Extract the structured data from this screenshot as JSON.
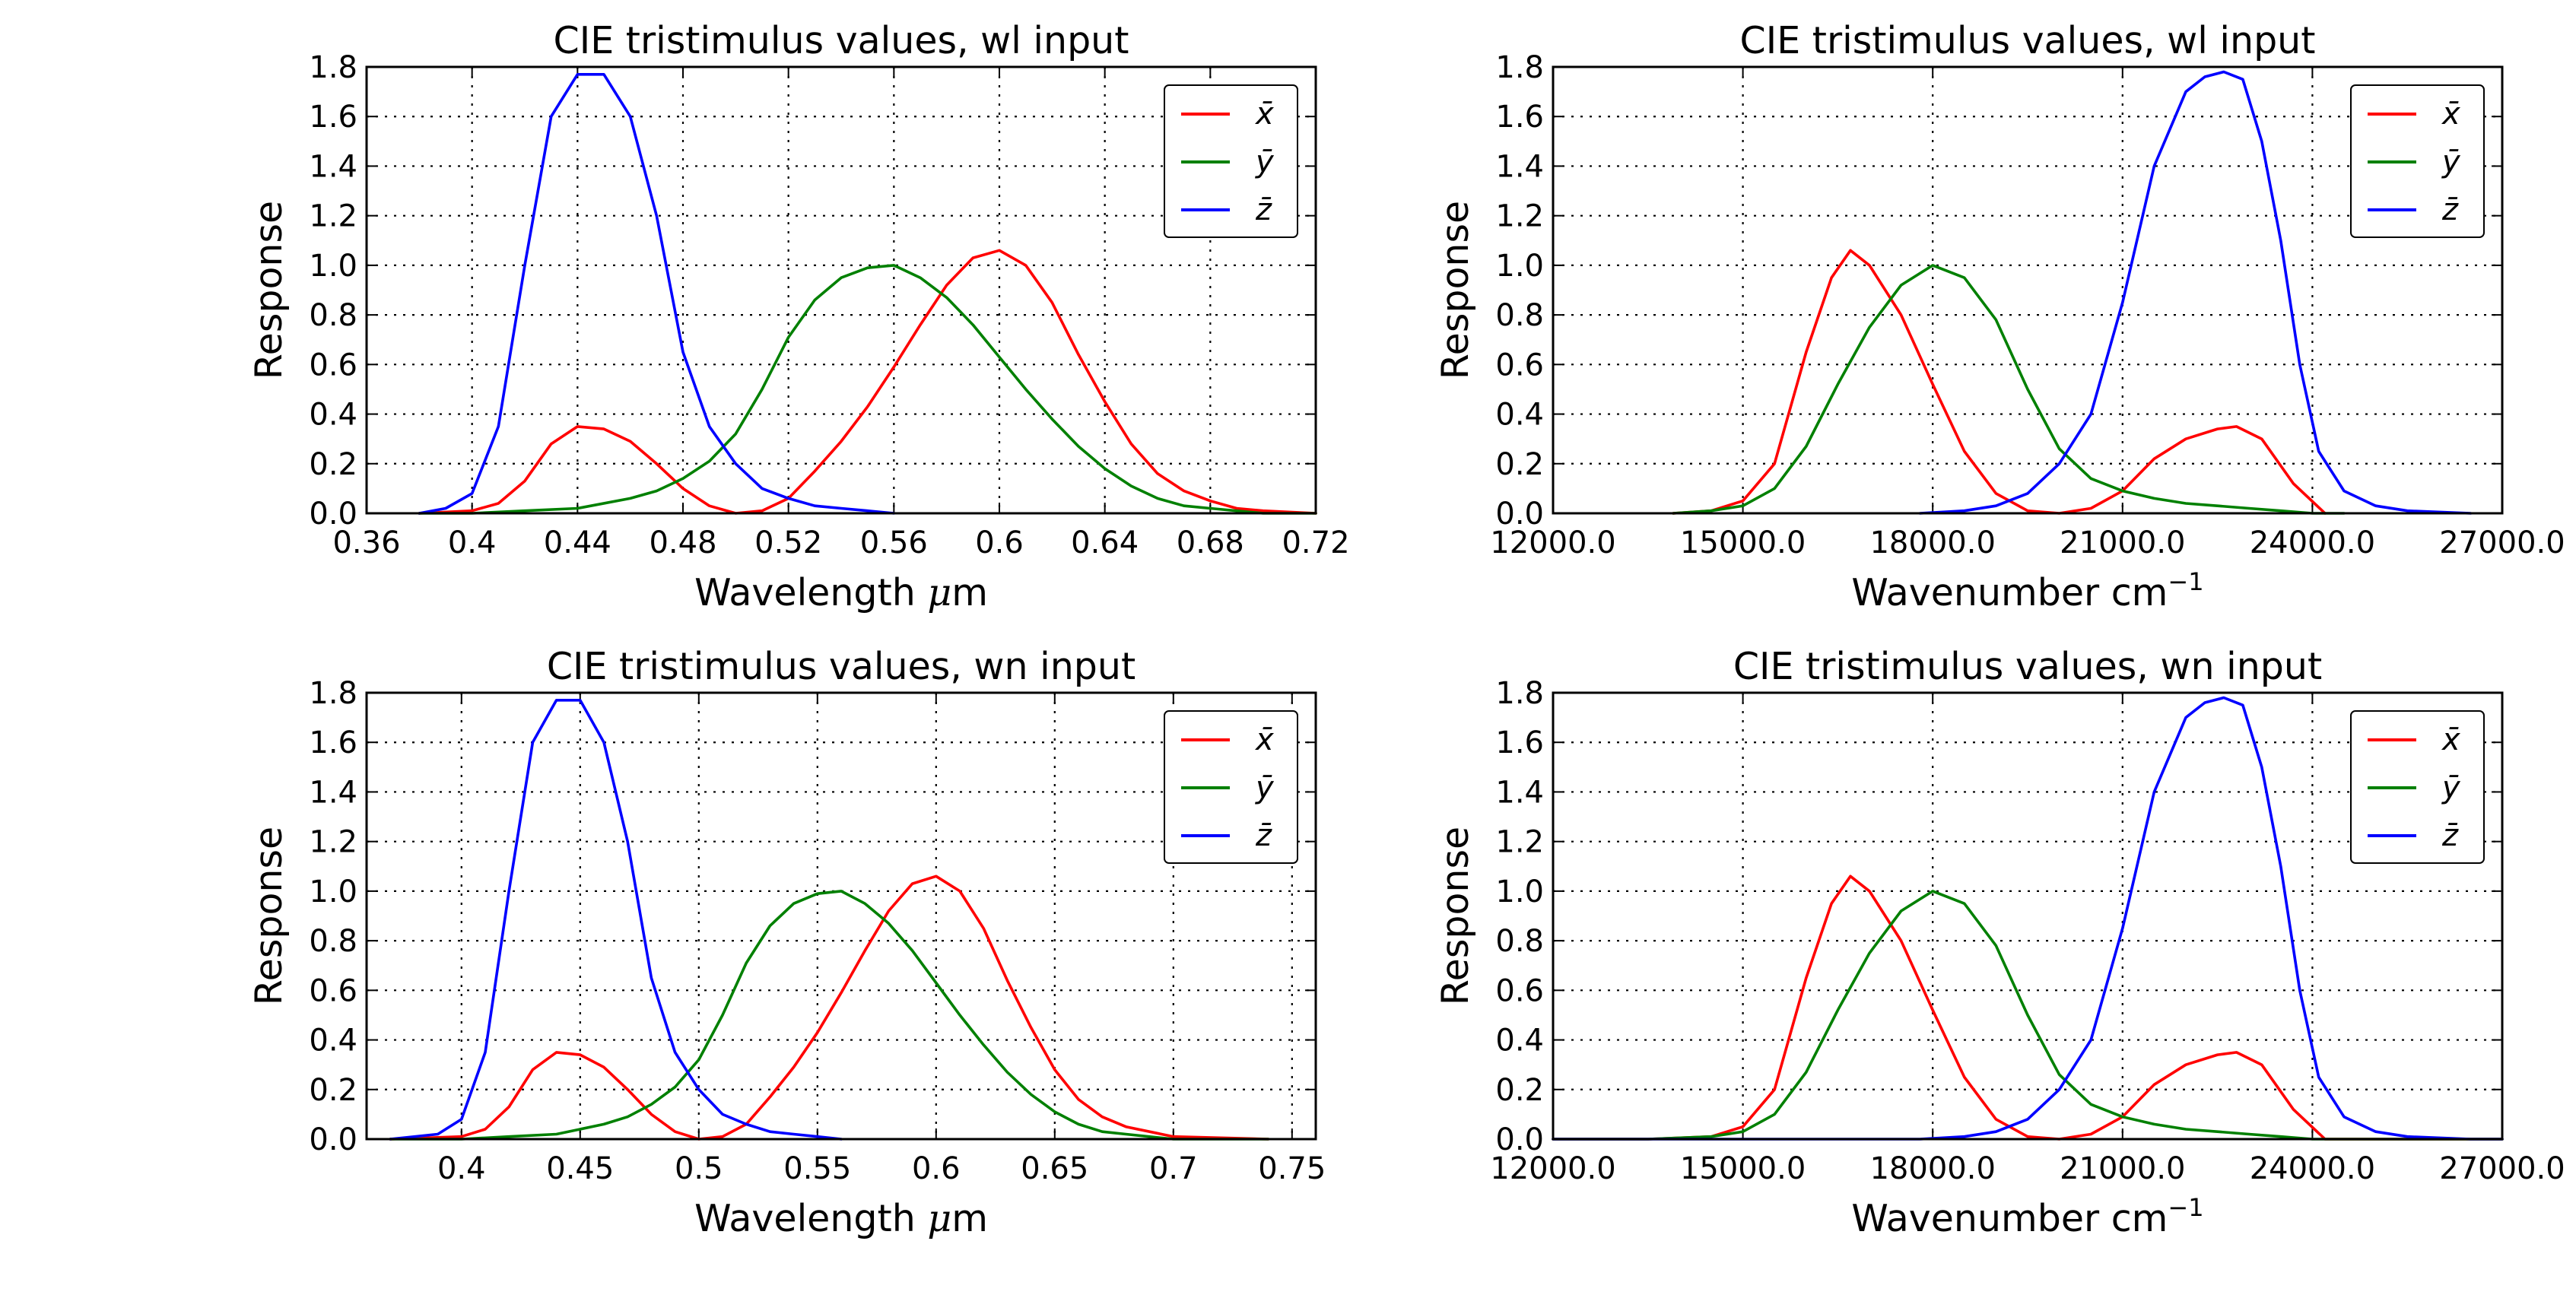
{
  "figure": {
    "panels": [
      {
        "title": "CIE tristimulus values, wl input",
        "xlabel_main": "Wavelength ",
        "xlabel_unit": "μ",
        "xlabel_tail": "m",
        "ylabel": "Response",
        "xticks": [
          "0.36",
          "0.4",
          "0.44",
          "0.48",
          "0.52",
          "0.56",
          "0.6",
          "0.64",
          "0.68",
          "0.72"
        ],
        "yticks": [
          "0.0",
          "0.2",
          "0.4",
          "0.6",
          "0.8",
          "1.0",
          "1.2",
          "1.4",
          "1.6",
          "1.8"
        ],
        "legend": [
          "x̄",
          "ȳ",
          "z̄"
        ]
      },
      {
        "title": "CIE tristimulus values, wl input",
        "xlabel_main": "Wavenumber cm",
        "xlabel_sup": "−1",
        "ylabel": "Response",
        "xticks": [
          "12000.0",
          "15000.0",
          "18000.0",
          "21000.0",
          "24000.0",
          "27000.0"
        ],
        "yticks": [
          "0.0",
          "0.2",
          "0.4",
          "0.6",
          "0.8",
          "1.0",
          "1.2",
          "1.4",
          "1.6",
          "1.8"
        ],
        "legend": [
          "x̄",
          "ȳ",
          "z̄"
        ]
      },
      {
        "title": "CIE tristimulus values, wn input",
        "xlabel_main": "Wavelength ",
        "xlabel_unit": "μ",
        "xlabel_tail": "m",
        "ylabel": "Response",
        "xticks": [
          "0.4",
          "0.45",
          "0.5",
          "0.55",
          "0.6",
          "0.65",
          "0.7",
          "0.75"
        ],
        "yticks": [
          "0.0",
          "0.2",
          "0.4",
          "0.6",
          "0.8",
          "1.0",
          "1.2",
          "1.4",
          "1.6",
          "1.8"
        ],
        "legend": [
          "x̄",
          "ȳ",
          "z̄"
        ]
      },
      {
        "title": "CIE tristimulus values, wn input",
        "xlabel_main": "Wavenumber cm",
        "xlabel_sup": "−1",
        "ylabel": "Response",
        "xticks": [
          "12000.0",
          "15000.0",
          "18000.0",
          "21000.0",
          "24000.0",
          "27000.0"
        ],
        "yticks": [
          "0.0",
          "0.2",
          "0.4",
          "0.6",
          "0.8",
          "1.0",
          "1.2",
          "1.4",
          "1.6",
          "1.8"
        ],
        "legend": [
          "x̄",
          "ȳ",
          "z̄"
        ]
      }
    ]
  },
  "colors": {
    "xbar": "#ff0000",
    "ybar": "#008000",
    "zbar": "#0000ff",
    "grid": "#000000"
  },
  "chart_data": [
    {
      "type": "line",
      "title": "CIE tristimulus values, wl input",
      "xlabel": "Wavelength μm",
      "ylabel": "Response",
      "xlim": [
        0.36,
        0.72
      ],
      "ylim": [
        0.0,
        1.8
      ],
      "grid": true,
      "legend_position": "top-right",
      "series": [
        {
          "name": "x̄",
          "color": "#ff0000",
          "x": [
            0.38,
            0.4,
            0.41,
            0.42,
            0.43,
            0.44,
            0.45,
            0.46,
            0.47,
            0.48,
            0.49,
            0.5,
            0.51,
            0.52,
            0.53,
            0.54,
            0.55,
            0.56,
            0.57,
            0.58,
            0.59,
            0.6,
            0.61,
            0.62,
            0.63,
            0.64,
            0.65,
            0.66,
            0.67,
            0.68,
            0.69,
            0.7,
            0.72
          ],
          "y": [
            0.0,
            0.01,
            0.04,
            0.13,
            0.28,
            0.35,
            0.34,
            0.29,
            0.2,
            0.1,
            0.03,
            0.0,
            0.01,
            0.06,
            0.17,
            0.29,
            0.43,
            0.59,
            0.76,
            0.92,
            1.03,
            1.06,
            1.0,
            0.85,
            0.64,
            0.45,
            0.28,
            0.16,
            0.09,
            0.05,
            0.02,
            0.01,
            0.0
          ]
        },
        {
          "name": "ȳ",
          "color": "#008000",
          "x": [
            0.38,
            0.4,
            0.42,
            0.44,
            0.46,
            0.47,
            0.48,
            0.49,
            0.5,
            0.51,
            0.52,
            0.53,
            0.54,
            0.55,
            0.56,
            0.57,
            0.58,
            0.59,
            0.6,
            0.61,
            0.62,
            0.63,
            0.64,
            0.65,
            0.66,
            0.67,
            0.68,
            0.7,
            0.72
          ],
          "y": [
            0.0,
            0.0,
            0.01,
            0.02,
            0.06,
            0.09,
            0.14,
            0.21,
            0.32,
            0.5,
            0.71,
            0.86,
            0.95,
            0.99,
            1.0,
            0.95,
            0.87,
            0.76,
            0.63,
            0.5,
            0.38,
            0.27,
            0.18,
            0.11,
            0.06,
            0.03,
            0.02,
            0.0,
            0.0
          ]
        },
        {
          "name": "z̄",
          "color": "#0000ff",
          "x": [
            0.38,
            0.39,
            0.4,
            0.41,
            0.42,
            0.43,
            0.44,
            0.45,
            0.46,
            0.47,
            0.48,
            0.49,
            0.5,
            0.51,
            0.52,
            0.53,
            0.54,
            0.55,
            0.56
          ],
          "y": [
            0.0,
            0.02,
            0.08,
            0.35,
            1.0,
            1.6,
            1.77,
            1.77,
            1.6,
            1.2,
            0.65,
            0.35,
            0.2,
            0.1,
            0.06,
            0.03,
            0.02,
            0.01,
            0.0
          ]
        }
      ]
    },
    {
      "type": "line",
      "title": "CIE tristimulus values, wl input",
      "xlabel": "Wavenumber cm−1",
      "ylabel": "Response",
      "xlim": [
        12000,
        27000
      ],
      "ylim": [
        0.0,
        1.8
      ],
      "grid": true,
      "legend_position": "top-right",
      "series": [
        {
          "name": "x̄",
          "color": "#ff0000",
          "x": [
            13900,
            14500,
            15000,
            15500,
            16000,
            16400,
            16700,
            17000,
            17500,
            18000,
            18500,
            19000,
            19500,
            20000,
            20500,
            21000,
            21500,
            22000,
            22500,
            22800,
            23200,
            23700,
            24200
          ],
          "y": [
            0.0,
            0.01,
            0.05,
            0.2,
            0.65,
            0.95,
            1.06,
            1.0,
            0.8,
            0.52,
            0.25,
            0.08,
            0.01,
            0.0,
            0.02,
            0.09,
            0.22,
            0.3,
            0.34,
            0.35,
            0.3,
            0.12,
            0.0
          ]
        },
        {
          "name": "ȳ",
          "color": "#008000",
          "x": [
            13900,
            14500,
            15000,
            15500,
            16000,
            16500,
            17000,
            17500,
            18000,
            18500,
            19000,
            19500,
            20000,
            20500,
            21000,
            21500,
            22000,
            22500,
            23000,
            23500,
            24000,
            24500
          ],
          "y": [
            0.0,
            0.01,
            0.03,
            0.1,
            0.27,
            0.52,
            0.75,
            0.92,
            1.0,
            0.95,
            0.78,
            0.5,
            0.26,
            0.14,
            0.09,
            0.06,
            0.04,
            0.03,
            0.02,
            0.01,
            0.0,
            0.0
          ]
        },
        {
          "name": "z̄",
          "color": "#0000ff",
          "x": [
            17800,
            18500,
            19000,
            19500,
            20000,
            20500,
            21000,
            21500,
            22000,
            22300,
            22600,
            22900,
            23200,
            23500,
            23800,
            24100,
            24500,
            25000,
            25500,
            26500
          ],
          "y": [
            0.0,
            0.01,
            0.03,
            0.08,
            0.2,
            0.4,
            0.85,
            1.4,
            1.7,
            1.76,
            1.78,
            1.75,
            1.5,
            1.1,
            0.6,
            0.25,
            0.09,
            0.03,
            0.01,
            0.0
          ]
        }
      ]
    },
    {
      "type": "line",
      "title": "CIE tristimulus values, wn input",
      "xlabel": "Wavelength μm",
      "ylabel": "Response",
      "xlim": [
        0.36,
        0.76
      ],
      "ylim": [
        0.0,
        1.8
      ],
      "grid": true,
      "legend_position": "top-right",
      "series": [
        {
          "name": "x̄",
          "color": "#ff0000",
          "x": [
            0.37,
            0.4,
            0.41,
            0.42,
            0.43,
            0.44,
            0.45,
            0.46,
            0.47,
            0.48,
            0.49,
            0.5,
            0.51,
            0.52,
            0.53,
            0.54,
            0.55,
            0.56,
            0.57,
            0.58,
            0.59,
            0.6,
            0.61,
            0.62,
            0.63,
            0.64,
            0.65,
            0.66,
            0.67,
            0.68,
            0.7,
            0.74
          ],
          "y": [
            0.0,
            0.01,
            0.04,
            0.13,
            0.28,
            0.35,
            0.34,
            0.29,
            0.2,
            0.1,
            0.03,
            0.0,
            0.01,
            0.06,
            0.17,
            0.29,
            0.43,
            0.59,
            0.76,
            0.92,
            1.03,
            1.06,
            1.0,
            0.85,
            0.64,
            0.45,
            0.28,
            0.16,
            0.09,
            0.05,
            0.01,
            0.0
          ]
        },
        {
          "name": "ȳ",
          "color": "#008000",
          "x": [
            0.37,
            0.4,
            0.42,
            0.44,
            0.46,
            0.47,
            0.48,
            0.49,
            0.5,
            0.51,
            0.52,
            0.53,
            0.54,
            0.55,
            0.56,
            0.57,
            0.58,
            0.59,
            0.6,
            0.61,
            0.62,
            0.63,
            0.64,
            0.65,
            0.66,
            0.67,
            0.68,
            0.7,
            0.74
          ],
          "y": [
            0.0,
            0.0,
            0.01,
            0.02,
            0.06,
            0.09,
            0.14,
            0.21,
            0.32,
            0.5,
            0.71,
            0.86,
            0.95,
            0.99,
            1.0,
            0.95,
            0.87,
            0.76,
            0.63,
            0.5,
            0.38,
            0.27,
            0.18,
            0.11,
            0.06,
            0.03,
            0.02,
            0.0,
            0.0
          ]
        },
        {
          "name": "z̄",
          "color": "#0000ff",
          "x": [
            0.37,
            0.39,
            0.4,
            0.41,
            0.42,
            0.43,
            0.44,
            0.45,
            0.46,
            0.47,
            0.48,
            0.49,
            0.5,
            0.51,
            0.52,
            0.53,
            0.54,
            0.55,
            0.56
          ],
          "y": [
            0.0,
            0.02,
            0.08,
            0.35,
            1.0,
            1.6,
            1.77,
            1.77,
            1.6,
            1.2,
            0.65,
            0.35,
            0.2,
            0.1,
            0.06,
            0.03,
            0.02,
            0.01,
            0.0
          ]
        }
      ]
    },
    {
      "type": "line",
      "title": "CIE tristimulus values, wn input",
      "xlabel": "Wavenumber cm−1",
      "ylabel": "Response",
      "xlim": [
        12000,
        27000
      ],
      "ylim": [
        0.0,
        1.8
      ],
      "grid": true,
      "legend_position": "top-right",
      "series": [
        {
          "name": "x̄",
          "color": "#ff0000",
          "x": [
            12000,
            13500,
            14500,
            15000,
            15500,
            16000,
            16400,
            16700,
            17000,
            17500,
            18000,
            18500,
            19000,
            19500,
            20000,
            20500,
            21000,
            21500,
            22000,
            22500,
            22800,
            23200,
            23700,
            24200,
            27000
          ],
          "y": [
            0.0,
            0.0,
            0.01,
            0.05,
            0.2,
            0.65,
            0.95,
            1.06,
            1.0,
            0.8,
            0.52,
            0.25,
            0.08,
            0.01,
            0.0,
            0.02,
            0.09,
            0.22,
            0.3,
            0.34,
            0.35,
            0.3,
            0.12,
            0.0,
            0.0
          ]
        },
        {
          "name": "ȳ",
          "color": "#008000",
          "x": [
            12000,
            13500,
            14500,
            15000,
            15500,
            16000,
            16500,
            17000,
            17500,
            18000,
            18500,
            19000,
            19500,
            20000,
            20500,
            21000,
            21500,
            22000,
            22500,
            23000,
            23500,
            24000,
            25000,
            27000
          ],
          "y": [
            0.0,
            0.0,
            0.01,
            0.03,
            0.1,
            0.27,
            0.52,
            0.75,
            0.92,
            1.0,
            0.95,
            0.78,
            0.5,
            0.26,
            0.14,
            0.09,
            0.06,
            0.04,
            0.03,
            0.02,
            0.01,
            0.0,
            0.0,
            0.0
          ]
        },
        {
          "name": "z̄",
          "color": "#0000ff",
          "x": [
            12000,
            17800,
            18500,
            19000,
            19500,
            20000,
            20500,
            21000,
            21500,
            22000,
            22300,
            22600,
            22900,
            23200,
            23500,
            23800,
            24100,
            24500,
            25000,
            25500,
            26500,
            27000
          ],
          "y": [
            0.0,
            0.0,
            0.01,
            0.03,
            0.08,
            0.2,
            0.4,
            0.85,
            1.4,
            1.7,
            1.76,
            1.78,
            1.75,
            1.5,
            1.1,
            0.6,
            0.25,
            0.09,
            0.03,
            0.01,
            0.0,
            0.0
          ]
        }
      ]
    }
  ]
}
